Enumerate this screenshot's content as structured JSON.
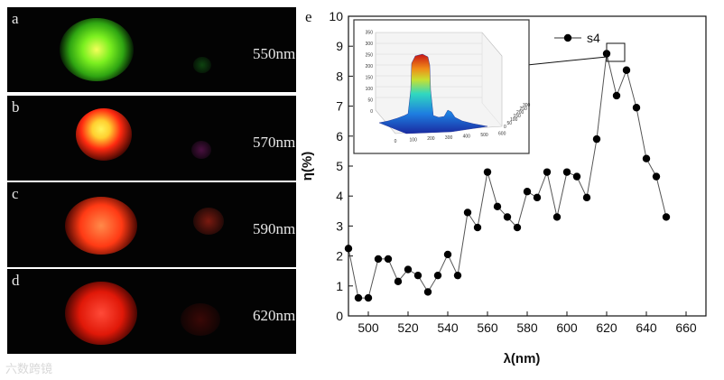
{
  "panels": [
    {
      "letter": "a",
      "wavelength": "550nm"
    },
    {
      "letter": "b",
      "wavelength": "570nm"
    },
    {
      "letter": "c",
      "wavelength": "590nm"
    },
    {
      "letter": "d",
      "wavelength": "620nm"
    }
  ],
  "chart_label": "e",
  "watermark": "六数跨镜",
  "colors": {
    "panel_bg": "#030303",
    "marker": "#000000",
    "line": "#555555"
  },
  "chart_data": {
    "type": "line",
    "title": "",
    "xlabel": "λ(nm)",
    "ylabel": "η(%)",
    "xlim": [
      490,
      670
    ],
    "ylim": [
      0,
      10
    ],
    "xticks": [
      500,
      520,
      540,
      560,
      580,
      600,
      620,
      640,
      660
    ],
    "yticks": [
      0,
      1,
      2,
      3,
      4,
      5,
      6,
      7,
      8,
      9,
      10
    ],
    "legend": "top-right",
    "series": [
      {
        "name": "s4",
        "x": [
          490,
          495,
          500,
          505,
          510,
          515,
          520,
          525,
          530,
          535,
          540,
          545,
          550,
          555,
          560,
          565,
          570,
          575,
          580,
          585,
          590,
          595,
          600,
          605,
          610,
          615,
          620,
          625,
          630,
          635,
          640,
          645,
          650
        ],
        "y": [
          2.25,
          0.6,
          0.6,
          1.9,
          1.9,
          1.15,
          1.55,
          1.35,
          0.8,
          1.35,
          2.05,
          1.35,
          3.45,
          2.95,
          4.8,
          3.65,
          3.3,
          2.95,
          4.15,
          3.95,
          4.8,
          3.3,
          4.8,
          4.65,
          3.95,
          5.9,
          8.75,
          7.35,
          8.2,
          6.95,
          5.25,
          4.65,
          3.3
        ]
      }
    ],
    "inset": {
      "xticks": [
        "0",
        "100",
        "200",
        "300",
        "400",
        "500",
        "600"
      ],
      "zticks": [
        "0",
        "50",
        "100",
        "150",
        "200",
        "250",
        "300",
        "350"
      ],
      "yticks": [
        "0",
        "50",
        "100",
        "150",
        "200",
        "250",
        "300"
      ]
    }
  }
}
